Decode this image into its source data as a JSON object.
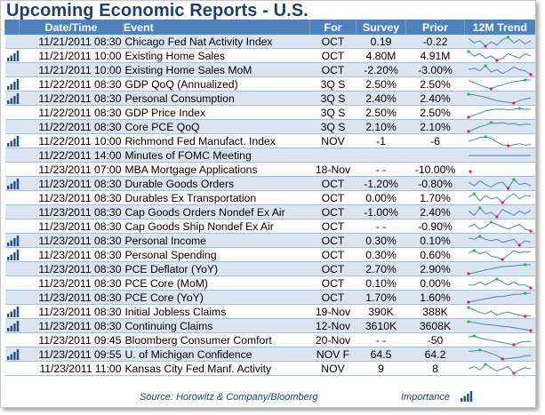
{
  "title": "Upcoming Economic Reports - U.S.",
  "headers": {
    "datetime": "Date/Time",
    "event": "Event",
    "for": "For",
    "survey": "Survey",
    "prior": "Prior",
    "trend": "12M Trend"
  },
  "colors": {
    "header_bg": "#4f81bd",
    "row_shade": "#dbe5f1",
    "title": "#1f3e6e",
    "spark_line": "#4f81bd",
    "spark_max": "#2db82d",
    "spark_min": "#e0204a"
  },
  "rows": [
    {
      "importance": 0,
      "datetime": "11/21/2011 08:30",
      "event": "Chicago Fed Nat Activity Index",
      "for": "OCT",
      "survey": "0.19",
      "prior": "-0.22",
      "trend": [
        0.3,
        -0.1,
        0.1,
        -0.4,
        0.0,
        -0.3,
        0.2,
        0.4,
        -0.1,
        0.2,
        -0.2,
        0.1
      ]
    },
    {
      "importance": 4,
      "datetime": "11/21/2011 10:00",
      "event": "Existing Home Sales",
      "for": "OCT",
      "survey": "4.80M",
      "prior": "4.91M",
      "trend": [
        5.1,
        4.9,
        5.0,
        4.8,
        4.9,
        4.7,
        4.8,
        5.0,
        4.9,
        4.8,
        5.0,
        4.9
      ]
    },
    {
      "importance": 0,
      "datetime": "11/21/2011 10:00",
      "event": "Existing Home Sales MoM",
      "for": "OCT",
      "survey": "-2.20%",
      "prior": "-3.00%",
      "trend": [
        1,
        2,
        0,
        4,
        -1,
        1,
        -2,
        0,
        3,
        1,
        0,
        -3
      ]
    },
    {
      "importance": 4,
      "datetime": "11/22/2011 08:30",
      "event": "GDP QoQ (Annualized)",
      "for": "3Q S",
      "survey": "2.50%",
      "prior": "2.50%",
      "trend": [
        2.4,
        1.9,
        1.3,
        0.8,
        0.4,
        1.0,
        1.3,
        1.8,
        2.1,
        2.3,
        2.5,
        2.5
      ]
    },
    {
      "importance": 4,
      "datetime": "11/22/2011 08:30",
      "event": "Personal Consumption",
      "for": "3Q S",
      "survey": "2.40%",
      "prior": "2.40%",
      "trend": [
        3.6,
        3.4,
        3.0,
        2.6,
        2.0,
        1.5,
        1.2,
        0.9,
        0.7,
        1.5,
        2.0,
        2.4
      ]
    },
    {
      "importance": 0,
      "datetime": "11/22/2011 08:30",
      "event": "GDP Price Index",
      "for": "3Q S",
      "survey": "2.50%",
      "prior": "2.50%",
      "trend": [
        1.5,
        1.8,
        2.0,
        2.3,
        2.4,
        2.5,
        2.5,
        2.4,
        2.5,
        2.6,
        2.5,
        2.5
      ]
    },
    {
      "importance": 0,
      "datetime": "11/22/2011 08:30",
      "event": "Core PCE QoQ",
      "for": "3Q S",
      "survey": "2.10%",
      "prior": "2.10%",
      "trend": [
        1.2,
        1.5,
        1.8,
        2.0,
        2.3,
        2.2,
        2.3,
        2.1,
        2.2,
        2.0,
        2.1,
        2.1
      ]
    },
    {
      "importance": 4,
      "datetime": "11/22/2011 10:00",
      "event": "Richmond Fed Manufact. Index",
      "for": "NOV",
      "survey": "-1",
      "prior": "-6",
      "trend": [
        5,
        10,
        18,
        20,
        15,
        3,
        -7,
        -10,
        -6,
        -3,
        -8,
        -6
      ]
    },
    {
      "importance": 0,
      "datetime": "11/22/2011 14:00",
      "event": "Minutes of FOMC Meeting",
      "for": "",
      "survey": "",
      "prior": "",
      "trend": [
        1,
        1
      ]
    },
    {
      "importance": 0,
      "datetime": "11/23/2011 07:00",
      "event": "MBA Mortgage Applications",
      "for": "18-Nov",
      "survey": "- -",
      "prior": "-10.00%",
      "trend": [
        0
      ]
    },
    {
      "importance": 4,
      "datetime": "11/23/2011 08:30",
      "event": "Durable Goods Orders",
      "for": "OCT",
      "survey": "-1.20%",
      "prior": "-0.80%",
      "trend": [
        2,
        -1,
        3,
        0,
        -2,
        1,
        2,
        -3,
        4,
        0,
        1,
        -0.8
      ]
    },
    {
      "importance": 0,
      "datetime": "11/23/2011 08:30",
      "event": "Durables Ex Transportation",
      "for": "OCT",
      "survey": "0.00%",
      "prior": "1.70%",
      "trend": [
        1,
        3,
        -1,
        2,
        0,
        1,
        -2,
        1,
        3,
        0,
        2,
        1.7
      ]
    },
    {
      "importance": 0,
      "datetime": "11/23/2011 08:30",
      "event": "Cap Goods Orders Nondef Ex Air",
      "for": "OCT",
      "survey": "-1.00%",
      "prior": "2.40%",
      "trend": [
        2,
        -1,
        4,
        0,
        1,
        -2,
        3,
        1,
        -1,
        2,
        0,
        2.4
      ]
    },
    {
      "importance": 0,
      "datetime": "11/23/2011 08:30",
      "event": "Cap Goods Ship Nondef Ex Air",
      "for": "OCT",
      "survey": "- -",
      "prior": "-0.90%",
      "trend": [
        1,
        2,
        0,
        1,
        3,
        2,
        1,
        0,
        1,
        2,
        0,
        -0.9
      ]
    },
    {
      "importance": 4,
      "datetime": "11/23/2011 08:30",
      "event": "Personal Income",
      "for": "OCT",
      "survey": "0.30%",
      "prior": "0.10%",
      "trend": [
        0.4,
        0.3,
        0.5,
        0.3,
        0.2,
        0.3,
        0.1,
        0.2,
        0.3,
        -0.1,
        0.2,
        0.1
      ]
    },
    {
      "importance": 4,
      "datetime": "11/23/2011 08:30",
      "event": "Personal Spending",
      "for": "OCT",
      "survey": "0.30%",
      "prior": "0.60%",
      "trend": [
        0.5,
        0.7,
        0.4,
        0.6,
        0.2,
        0.1,
        -0.1,
        0.3,
        0.7,
        0.5,
        0.6,
        0.6
      ]
    },
    {
      "importance": 0,
      "datetime": "11/23/2011 08:30",
      "event": "PCE Deflator (YoY)",
      "for": "OCT",
      "survey": "2.70%",
      "prior": "2.90%",
      "trend": [
        1.0,
        1.2,
        1.5,
        1.8,
        2.0,
        2.3,
        2.5,
        2.6,
        2.7,
        2.8,
        2.9,
        2.9
      ]
    },
    {
      "importance": 0,
      "datetime": "11/23/2011 08:30",
      "event": "PCE Core (MoM)",
      "for": "OCT",
      "survey": "0.10%",
      "prior": "0.00%",
      "trend": [
        0.1,
        0.1,
        0.2,
        0.1,
        0.2,
        0.3,
        0.2,
        0.1,
        0.2,
        0.1,
        0.1,
        0.0
      ]
    },
    {
      "importance": 0,
      "datetime": "11/23/2011 08:30",
      "event": "PCE Core (YoY)",
      "for": "OCT",
      "survey": "1.70%",
      "prior": "1.60%",
      "trend": [
        0.8,
        0.9,
        1.0,
        1.1,
        1.2,
        1.3,
        1.3,
        1.4,
        1.5,
        1.5,
        1.6,
        1.6
      ]
    },
    {
      "importance": 4,
      "datetime": "11/23/2011 08:30",
      "event": "Initial Jobless Claims",
      "for": "19-Nov",
      "survey": "390K",
      "prior": "388K",
      "trend": [
        420,
        410,
        400,
        395,
        405,
        390,
        398,
        402,
        395,
        390,
        385,
        388
      ]
    },
    {
      "importance": 4,
      "datetime": "11/23/2011 08:30",
      "event": "Continuing Claims",
      "for": "12-Nov",
      "survey": "3610K",
      "prior": "3608K",
      "trend": [
        3800,
        3780,
        3760,
        3740,
        3730,
        3720,
        3700,
        3690,
        3670,
        3650,
        3630,
        3608
      ]
    },
    {
      "importance": 0,
      "datetime": "11/23/2011 09:45",
      "event": "Bloomberg Consumer Comfort",
      "for": "20-Nov",
      "survey": "- -",
      "prior": "-50",
      "trend": [
        -46,
        -45,
        -47,
        -48,
        -49,
        -50,
        -51,
        -52,
        -53,
        -51,
        -50,
        -50
      ]
    },
    {
      "importance": 4,
      "datetime": "11/23/2011 09:55",
      "event": "U. of Michigan Confidence",
      "for": "NOV F",
      "survey": "64.5",
      "prior": "64.2",
      "trend": [
        74,
        75,
        77,
        74,
        69,
        64,
        56,
        57,
        59,
        60,
        64,
        64.2
      ]
    },
    {
      "importance": 0,
      "datetime": "11/23/2011 11:00",
      "event": "Kansas City Fed Manf. Activity",
      "for": "NOV",
      "survey": "9",
      "prior": "8",
      "trend": [
        8,
        10,
        7,
        12,
        9,
        6,
        8,
        10,
        4,
        7,
        9,
        8
      ]
    }
  ],
  "footer": {
    "source": "Source: Horowitz & Company/Bloomberg",
    "importance_label": "Importance"
  }
}
